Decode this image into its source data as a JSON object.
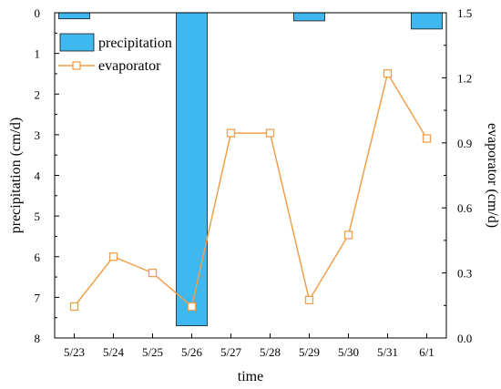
{
  "chart_data": {
    "type": "bar+line",
    "categories": [
      "5/23",
      "5/24",
      "5/25",
      "5/26",
      "5/27",
      "5/28",
      "5/29",
      "5/30",
      "5/31",
      "6/1"
    ],
    "series": [
      {
        "name": "precipitation",
        "type": "bar",
        "axis": "left",
        "values": [
          0.15,
          0,
          0,
          7.7,
          0,
          0,
          0.2,
          0,
          0,
          0.4
        ],
        "color": "#3fb8f0"
      },
      {
        "name": "evaporator",
        "type": "line",
        "axis": "right",
        "values": [
          0.145,
          0.375,
          0.3,
          0.145,
          0.945,
          0.945,
          0.175,
          0.475,
          1.22,
          0.92
        ],
        "color": "#f0a04b"
      }
    ],
    "xlabel": "time",
    "ylabel_left": "precipitation (cm/d)",
    "ylabel_right": "evaporator (cm/d)",
    "ylim_left": [
      0,
      8
    ],
    "ylim_right": [
      0,
      1.5
    ],
    "left_axis_inverted": true,
    "yticks_left": [
      "0",
      "1",
      "2",
      "3",
      "4",
      "5",
      "6",
      "7",
      "8"
    ],
    "yticks_right": [
      "0.0",
      "0.3",
      "0.6",
      "0.9",
      "1.2",
      "1.5"
    ],
    "legend_position": "top-left",
    "grid": false
  }
}
